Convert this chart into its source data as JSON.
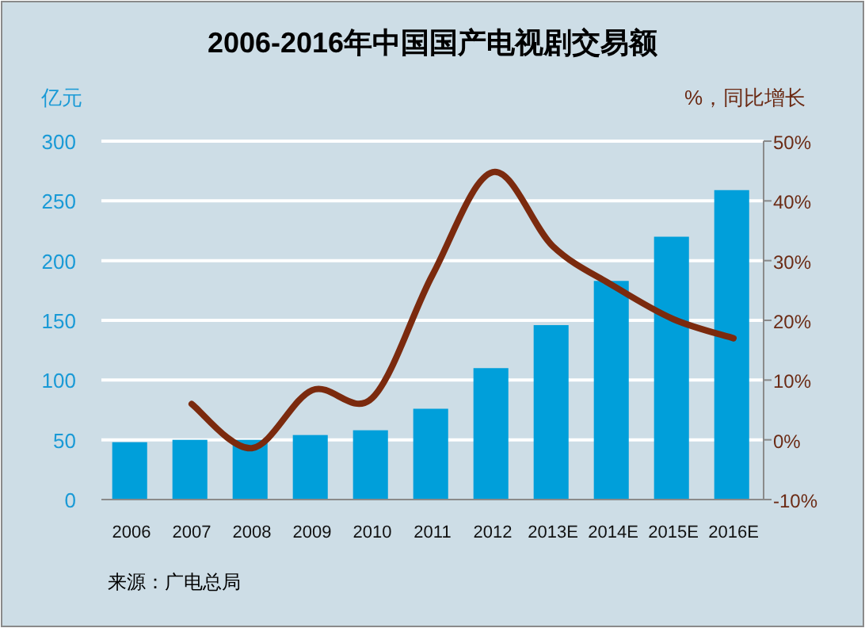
{
  "chart_data": {
    "type": "bar",
    "title": "2006-2016年中国国产电视剧交易额",
    "ylabel": "亿元",
    "y2label": "%，同比增长",
    "categories": [
      "2006",
      "2007",
      "2008",
      "2009",
      "2010",
      "2011",
      "2012",
      "2013E",
      "2014E",
      "2015E",
      "2016E"
    ],
    "series": [
      {
        "color": "#009fda",
        "values": [
          48,
          50,
          50,
          54,
          58,
          76,
          110,
          146,
          183,
          220,
          259
        ]
      },
      {
        "type": "line",
        "axis": "y2",
        "color": "#7b2a0e",
        "values": [
          null,
          6,
          -1.4,
          8.3,
          7,
          27.6,
          44.8,
          32.4,
          25.8,
          20.2,
          17
        ]
      }
    ],
    "ylim": [
      0,
      300
    ],
    "yticks": [
      0,
      50,
      100,
      150,
      200,
      250,
      300
    ],
    "y2lim": [
      -10,
      50
    ],
    "y2ticks": [
      {
        "value": -10,
        "label": "-10%"
      },
      {
        "value": 0,
        "label": "0%"
      },
      {
        "value": 10,
        "label": "10%"
      },
      {
        "value": 20,
        "label": "20%"
      },
      {
        "value": 30,
        "label": "30%"
      },
      {
        "value": 40,
        "label": "40%"
      },
      {
        "value": 50,
        "label": "50%"
      }
    ],
    "grid": "y",
    "annotations": [
      "来源：广电总局"
    ]
  }
}
